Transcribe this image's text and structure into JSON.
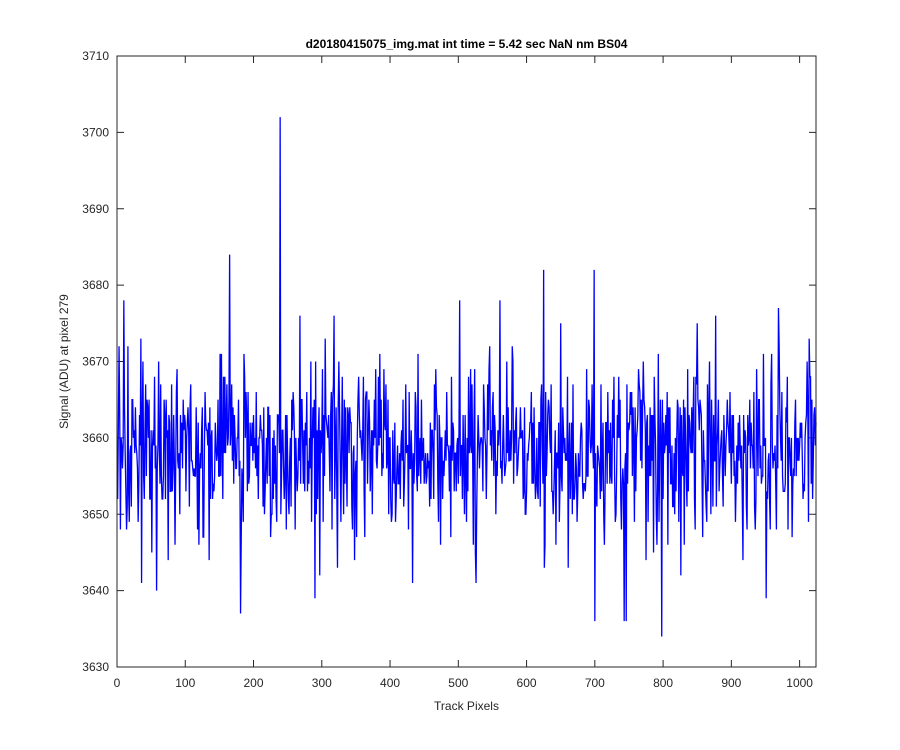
{
  "chart_data": {
    "type": "line",
    "title": "d20180415075_img.mat int time = 5.42 sec  NaN nm BS04",
    "xlabel": "Track Pixels",
    "ylabel": "Signal (ADU) at pixel 279",
    "xlim": [
      0,
      1024
    ],
    "ylim": [
      3630,
      3710
    ],
    "xticks": [
      0,
      100,
      200,
      300,
      400,
      500,
      600,
      700,
      800,
      900,
      1000
    ],
    "yticks": [
      3630,
      3640,
      3650,
      3660,
      3670,
      3680,
      3690,
      3700,
      3710
    ],
    "grid": false,
    "legend": "none",
    "series": [
      {
        "color": "#0000ff",
        "x_start": 1,
        "x_step": 1,
        "count": 1024,
        "baseline": 3658.5,
        "noise_std": 6,
        "features": [
          {
            "x": 3,
            "y": 3672
          },
          {
            "x": 10,
            "y": 3678
          },
          {
            "x": 14,
            "y": 3648
          },
          {
            "x": 36,
            "y": 3641
          },
          {
            "x": 38,
            "y": 3670
          },
          {
            "x": 58,
            "y": 3640
          },
          {
            "x": 75,
            "y": 3644
          },
          {
            "x": 165,
            "y": 3684
          },
          {
            "x": 181,
            "y": 3637
          },
          {
            "x": 239,
            "y": 3702
          },
          {
            "x": 290,
            "y": 3639
          },
          {
            "x": 433,
            "y": 3641
          },
          {
            "x": 502,
            "y": 3678
          },
          {
            "x": 526,
            "y": 3641
          },
          {
            "x": 561,
            "y": 3678
          },
          {
            "x": 625,
            "y": 3682
          },
          {
            "x": 699,
            "y": 3682
          },
          {
            "x": 700,
            "y": 3636
          },
          {
            "x": 743,
            "y": 3636
          },
          {
            "x": 746,
            "y": 3636
          },
          {
            "x": 798,
            "y": 3634
          },
          {
            "x": 951,
            "y": 3639
          },
          {
            "x": 969,
            "y": 3677
          }
        ]
      }
    ]
  }
}
